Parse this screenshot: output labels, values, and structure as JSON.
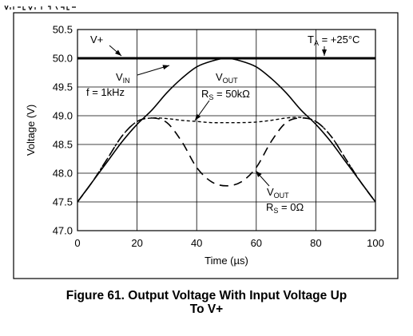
{
  "chart_data": {
    "type": "line",
    "title": "",
    "xlabel": "Time (µs)",
    "ylabel": "Voltage (V)",
    "xlim": [
      0,
      100
    ],
    "ylim": [
      47.0,
      50.5
    ],
    "x_ticks": [
      0,
      20,
      40,
      60,
      80,
      100
    ],
    "y_ticks": [
      47.0,
      47.5,
      48.0,
      48.5,
      49.0,
      49.5,
      50.0,
      50.5
    ],
    "x_tick_labels": [
      "0",
      "20",
      "40",
      "60",
      "80",
      "100"
    ],
    "y_tick_labels": [
      "47.0",
      "47.5",
      "48.0",
      "48.5",
      "49.0",
      "49.5",
      "50.0",
      "50.5"
    ],
    "grid": true,
    "legend": "none",
    "series": [
      {
        "name": "V+",
        "style": "solid-thick",
        "x": [
          0,
          100
        ],
        "y": [
          50.0,
          50.0
        ]
      },
      {
        "name": "VIN",
        "style": "solid",
        "x": [
          0,
          5,
          10,
          15,
          20,
          25,
          30,
          35,
          40,
          45,
          50,
          55,
          60,
          65,
          70,
          75,
          80,
          85,
          90,
          95,
          100
        ],
        "y": [
          47.5,
          47.85,
          48.2,
          48.55,
          48.85,
          49.1,
          49.4,
          49.65,
          49.85,
          49.95,
          50.0,
          49.95,
          49.85,
          49.65,
          49.4,
          49.1,
          48.85,
          48.55,
          48.2,
          47.85,
          47.5
        ]
      },
      {
        "name": "VOUT RS = 50kΩ",
        "style": "short-dash",
        "x": [
          0,
          5,
          10,
          15,
          20,
          25,
          30,
          35,
          40,
          45,
          50,
          55,
          60,
          65,
          70,
          75,
          80,
          85,
          90,
          95,
          100
        ],
        "y": [
          47.5,
          47.85,
          48.25,
          48.65,
          48.9,
          48.96,
          48.95,
          48.92,
          48.9,
          48.88,
          48.88,
          48.88,
          48.89,
          48.92,
          48.96,
          48.97,
          48.9,
          48.65,
          48.25,
          47.85,
          47.5
        ]
      },
      {
        "name": "VOUT RS = 0Ω",
        "style": "long-dash",
        "x": [
          0,
          5,
          10,
          15,
          20,
          25,
          30,
          35,
          40,
          45,
          50,
          55,
          60,
          65,
          70,
          75,
          80,
          85,
          90,
          95,
          100
        ],
        "y": [
          47.5,
          47.85,
          48.25,
          48.65,
          48.9,
          48.96,
          48.88,
          48.55,
          48.1,
          47.85,
          47.78,
          47.85,
          48.1,
          48.55,
          48.88,
          48.96,
          48.9,
          48.65,
          48.25,
          47.85,
          47.5
        ]
      }
    ],
    "annotations": {
      "vplus": "V+",
      "ta": "T",
      "ta_sub": "A",
      "ta_value": " = +25°C",
      "vin": "V",
      "vin_sub": "IN",
      "freq": "f = 1kHz",
      "vout1": "V",
      "vout1_sub": "OUT",
      "rs1": "R",
      "rs1_sub": "S",
      "rs1_value": " = 50kΩ",
      "vout2": "V",
      "vout2_sub": "OUT",
      "rs2": "R",
      "rs2_sub": "S",
      "rs2_value": " = 0Ω"
    }
  },
  "caption": {
    "line1": "Figure 61. Output Voltage With Input Voltage Up",
    "line2": "To V+"
  }
}
